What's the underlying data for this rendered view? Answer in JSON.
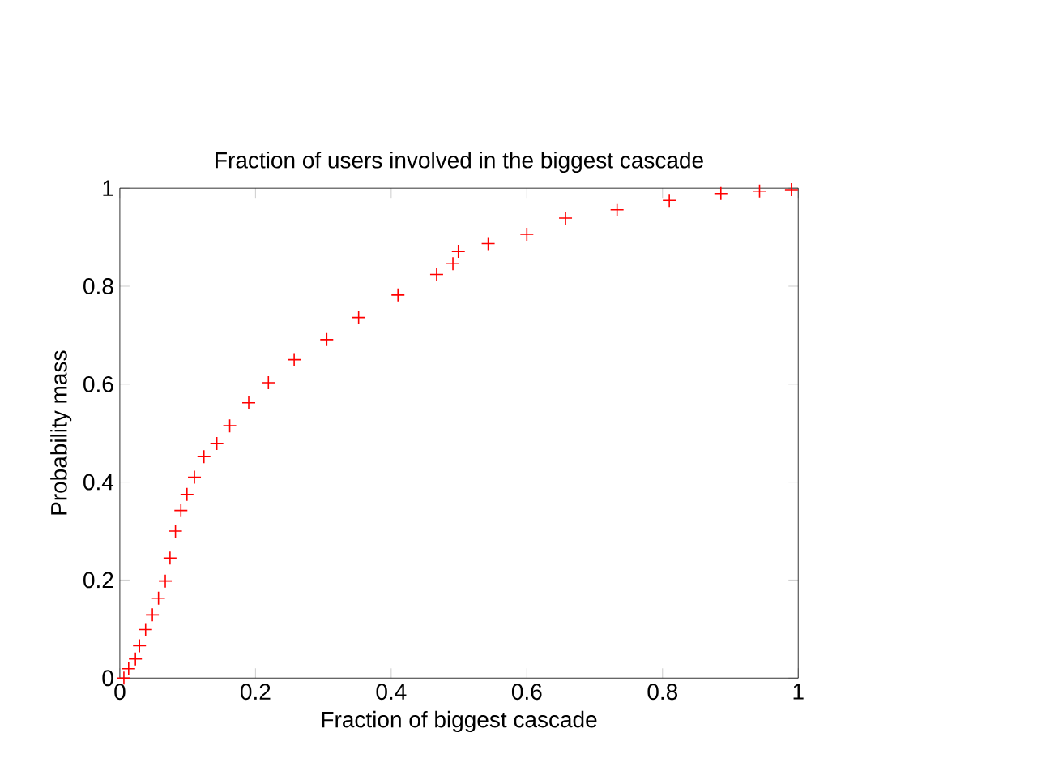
{
  "chart_data": {
    "type": "scatter",
    "title": "Fraction of users involved in the biggest cascade",
    "xlabel": "Fraction of biggest cascade",
    "ylabel": "Probability mass",
    "marker": "cross",
    "xlim": [
      0,
      1
    ],
    "ylim": [
      0,
      1
    ],
    "xticks": [
      0,
      0.2,
      0.4,
      0.6,
      0.8,
      1
    ],
    "yticks": [
      0,
      0.2,
      0.4,
      0.6,
      0.8,
      1
    ],
    "series": [
      {
        "color": "#ff0000",
        "x": [
          0.006,
          0.013,
          0.023,
          0.029,
          0.038,
          0.048,
          0.057,
          0.067,
          0.074,
          0.082,
          0.09,
          0.099,
          0.11,
          0.124,
          0.143,
          0.162,
          0.19,
          0.219,
          0.257,
          0.305,
          0.352,
          0.41,
          0.467,
          0.491,
          0.499,
          0.543,
          0.6,
          0.657,
          0.733,
          0.81,
          0.886,
          0.943,
          0.99
        ],
        "values": [
          0,
          0.019,
          0.039,
          0.066,
          0.099,
          0.129,
          0.163,
          0.198,
          0.245,
          0.3,
          0.342,
          0.375,
          0.41,
          0.452,
          0.479,
          0.515,
          0.562,
          0.603,
          0.65,
          0.691,
          0.736,
          0.782,
          0.824,
          0.846,
          0.871,
          0.887,
          0.906,
          0.939,
          0.956,
          0.975,
          0.989,
          0.994,
          0.997
        ]
      }
    ]
  }
}
